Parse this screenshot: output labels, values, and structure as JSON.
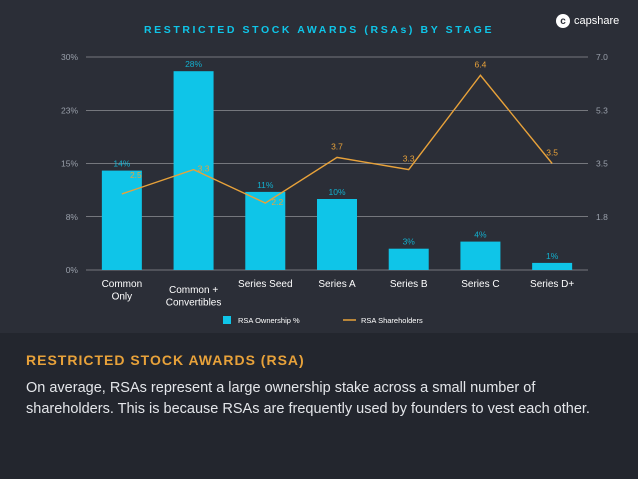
{
  "brand": {
    "logo_text": "capshare"
  },
  "section": {
    "title": "RESTRICTED STOCK AWARDS (RSA)",
    "body": "On average, RSAs represent a large ownership stake across a small number of shareholders. This is because RSAs are frequently used by founders to vest each other."
  },
  "colors": {
    "bar": "#0fc5e8",
    "line": "#e8a23a",
    "grid": "#ffffff",
    "axis_text": "#9aa0ab"
  },
  "chart_data": {
    "type": "bar",
    "title": "RESTRICTED STOCK AWARDS (RSAs) BY STAGE",
    "categories": [
      "Common\nOnly",
      "Common +\nConvertibles",
      "Series Seed",
      "Series A",
      "Series B",
      "Series C",
      "Series D+"
    ],
    "series": [
      {
        "name": "RSA Ownership %",
        "type": "bar",
        "axis": "left",
        "values": [
          14,
          28,
          11,
          10,
          3,
          4,
          1
        ],
        "labels": [
          "14%",
          "28%",
          "11%",
          "10%",
          "3%",
          "4%",
          "1%"
        ]
      },
      {
        "name": "RSA Shareholders",
        "type": "line",
        "axis": "right",
        "values": [
          2.5,
          3.3,
          2.2,
          3.7,
          3.3,
          6.4,
          3.5
        ],
        "labels": [
          "2.5",
          "3.3",
          "2.2",
          "3.7",
          "3.3",
          "6.4",
          "3.5"
        ]
      }
    ],
    "y_left": {
      "ticks": [
        "0%",
        "8%",
        "15%",
        "23%",
        "30%"
      ],
      "range": [
        0,
        30
      ]
    },
    "y_right": {
      "ticks": [
        "",
        "1.8",
        "3.5",
        "5.3",
        "7.0"
      ],
      "range": [
        0,
        7
      ]
    },
    "legend": {
      "position": "bottom-center",
      "items": [
        "RSA Ownership %",
        "RSA Shareholders"
      ]
    },
    "grid": true
  }
}
